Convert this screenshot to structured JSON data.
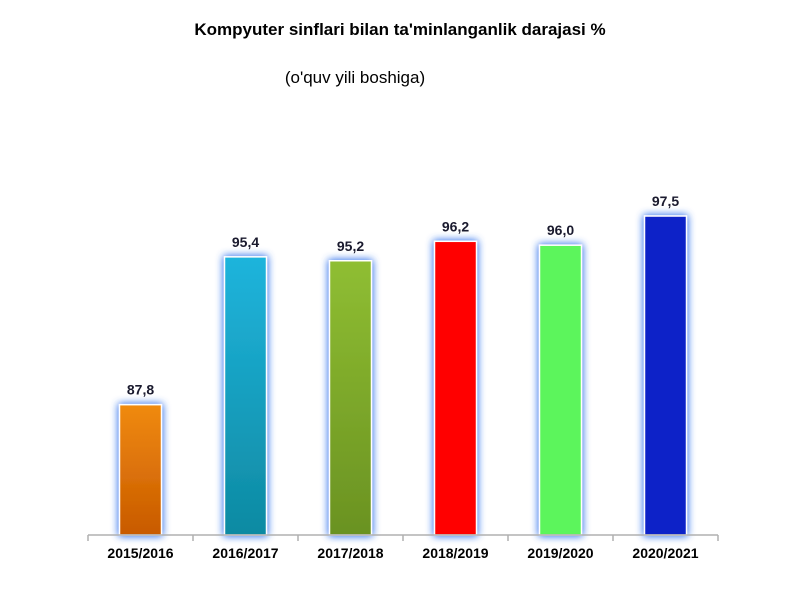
{
  "chart_data": {
    "type": "bar",
    "title": "Kompyuter sinflari bilan ta'minlanganlik darajasi %",
    "subtitle": "(o'quv yili boshiga)",
    "categories": [
      "2015/2016",
      "2016/2017",
      "2017/2018",
      "2018/2019",
      "2019/2020",
      "2020/2021"
    ],
    "values": [
      87.8,
      95.4,
      95.2,
      96.2,
      96.0,
      97.5
    ],
    "value_labels": [
      "87,8",
      "95,4",
      "95,2",
      "96,2",
      "96,0",
      "97,5"
    ],
    "colors": [
      "#f08a10",
      "#1fb4dc",
      "#8fbe32",
      "#ff0000",
      "#5cf55c",
      "#0b24c8"
    ],
    "bottom_colors": [
      "#c85a00",
      "#0e8aa2",
      "#6a9222",
      "#ff0000",
      "#5cf55c",
      "#0b24c8"
    ],
    "axis_line_color": "#b0b0b0",
    "glow_color": "#5a8ef0",
    "xlabel": "",
    "ylabel": "",
    "legend": "none",
    "grid": false,
    "y_axis_visible": false
  }
}
